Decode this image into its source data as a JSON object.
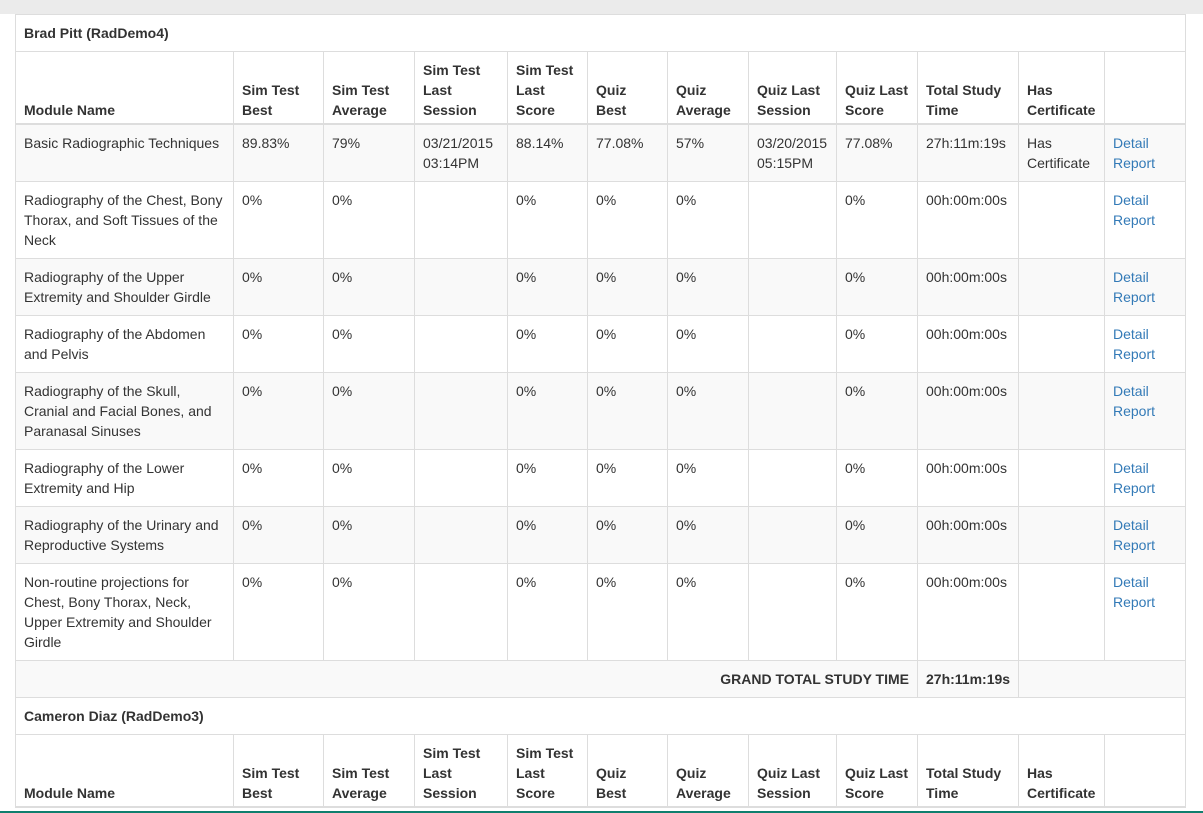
{
  "columns": {
    "module_name": "Module Name",
    "sim_test_best": "Sim Test Best",
    "sim_test_average": "Sim Test Average",
    "sim_test_last_session": "Sim Test Last Session",
    "sim_test_last_score": "Sim Test Last Score",
    "quiz_best": "Quiz Best",
    "quiz_average": "Quiz Average",
    "quiz_last_session": "Quiz Last Session",
    "quiz_last_score": "Quiz Last Score",
    "total_study_time": "Total Study Time",
    "has_certificate": "Has Certificate"
  },
  "students": [
    {
      "name": "Brad Pitt (RadDemo4)",
      "modules": [
        {
          "module": "Basic Radiographic Techniques",
          "sim_best": "89.83%",
          "sim_avg": "79%",
          "sim_last_session": "03/21/2015 03:14PM",
          "sim_last_score": "88.14%",
          "quiz_best": "77.08%",
          "quiz_avg": "57%",
          "quiz_last_session": "03/20/2015 05:15PM",
          "quiz_last_score": "77.08%",
          "study_time": "27h:11m:19s",
          "certificate": "Has Certificate",
          "link": "Detail Report"
        },
        {
          "module": "Radiography of the Chest, Bony Thorax, and Soft Tissues of the Neck",
          "sim_best": "0%",
          "sim_avg": "0%",
          "sim_last_session": "",
          "sim_last_score": "0%",
          "quiz_best": "0%",
          "quiz_avg": "0%",
          "quiz_last_session": "",
          "quiz_last_score": "0%",
          "study_time": "00h:00m:00s",
          "certificate": "",
          "link": "Detail Report"
        },
        {
          "module": "Radiography of the Upper Extremity and Shoulder Girdle",
          "sim_best": "0%",
          "sim_avg": "0%",
          "sim_last_session": "",
          "sim_last_score": "0%",
          "quiz_best": "0%",
          "quiz_avg": "0%",
          "quiz_last_session": "",
          "quiz_last_score": "0%",
          "study_time": "00h:00m:00s",
          "certificate": "",
          "link": "Detail Report"
        },
        {
          "module": "Radiography of the Abdomen and Pelvis",
          "sim_best": "0%",
          "sim_avg": "0%",
          "sim_last_session": "",
          "sim_last_score": "0%",
          "quiz_best": "0%",
          "quiz_avg": "0%",
          "quiz_last_session": "",
          "quiz_last_score": "0%",
          "study_time": "00h:00m:00s",
          "certificate": "",
          "link": "Detail Report"
        },
        {
          "module": "Radiography of the Skull, Cranial and Facial Bones, and Paranasal Sinuses",
          "sim_best": "0%",
          "sim_avg": "0%",
          "sim_last_session": "",
          "sim_last_score": "0%",
          "quiz_best": "0%",
          "quiz_avg": "0%",
          "quiz_last_session": "",
          "quiz_last_score": "0%",
          "study_time": "00h:00m:00s",
          "certificate": "",
          "link": "Detail Report"
        },
        {
          "module": "Radiography of the Lower Extremity and Hip",
          "sim_best": "0%",
          "sim_avg": "0%",
          "sim_last_session": "",
          "sim_last_score": "0%",
          "quiz_best": "0%",
          "quiz_avg": "0%",
          "quiz_last_session": "",
          "quiz_last_score": "0%",
          "study_time": "00h:00m:00s",
          "certificate": "",
          "link": "Detail Report"
        },
        {
          "module": "Radiography of the Urinary and Reproductive Systems",
          "sim_best": "0%",
          "sim_avg": "0%",
          "sim_last_session": "",
          "sim_last_score": "0%",
          "quiz_best": "0%",
          "quiz_avg": "0%",
          "quiz_last_session": "",
          "quiz_last_score": "0%",
          "study_time": "00h:00m:00s",
          "certificate": "",
          "link": "Detail Report"
        },
        {
          "module": "Non-routine projections for Chest, Bony Thorax, Neck, Upper Extremity and Shoulder Girdle",
          "sim_best": "0%",
          "sim_avg": "0%",
          "sim_last_session": "",
          "sim_last_score": "0%",
          "quiz_best": "0%",
          "quiz_avg": "0%",
          "quiz_last_session": "",
          "quiz_last_score": "0%",
          "study_time": "00h:00m:00s",
          "certificate": "",
          "link": "Detail Report"
        }
      ],
      "grand_total_label": "GRAND TOTAL STUDY TIME",
      "grand_total_value": "27h:11m:19s"
    },
    {
      "name": "Cameron Diaz (RadDemo3)",
      "modules": []
    }
  ]
}
